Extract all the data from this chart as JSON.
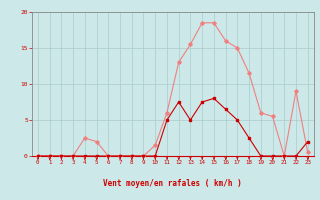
{
  "x": [
    0,
    1,
    2,
    3,
    4,
    5,
    6,
    7,
    8,
    9,
    10,
    11,
    12,
    13,
    14,
    15,
    16,
    17,
    18,
    19,
    20,
    21,
    22,
    23
  ],
  "rafales": [
    0,
    0,
    0,
    0,
    2.5,
    2,
    0,
    0,
    0,
    0,
    1.5,
    6,
    13,
    15.5,
    18.5,
    18.5,
    16,
    15,
    11.5,
    6,
    5.5,
    0,
    9,
    0.5
  ],
  "moyen": [
    0,
    0,
    0,
    0,
    0,
    0,
    0,
    0,
    0,
    0,
    0,
    5,
    7.5,
    5,
    7.5,
    8,
    6.5,
    5,
    2.5,
    0,
    0,
    0,
    0,
    2
  ],
  "xlabel": "Vent moyen/en rafales ( km/h )",
  "ylim": [
    0,
    20
  ],
  "yticks": [
    0,
    5,
    10,
    15,
    20
  ],
  "xticks": [
    0,
    1,
    2,
    3,
    4,
    5,
    6,
    7,
    8,
    9,
    10,
    11,
    12,
    13,
    14,
    15,
    16,
    17,
    18,
    19,
    20,
    21,
    22,
    23
  ],
  "color_rafales": "#f08080",
  "color_moyen": "#cc0000",
  "bg_color": "#cce8e8",
  "grid_color": "#aacccc",
  "tick_color": "#cc0000",
  "label_color": "#cc0000",
  "arrow_color": "#cc0000",
  "spine_color": "#888888"
}
